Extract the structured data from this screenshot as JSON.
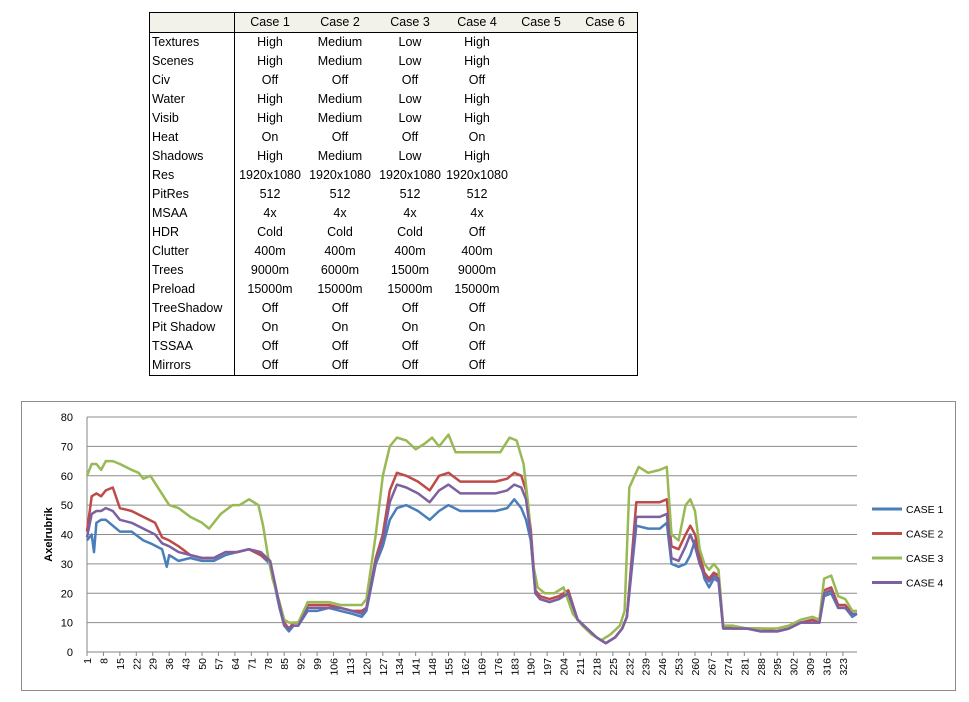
{
  "table": {
    "columns": [
      "",
      "Case 1",
      "Case 2",
      "Case 3",
      "Case 4",
      "Case 5",
      "Case 6"
    ],
    "rows": [
      {
        "label": "Textures",
        "values": [
          "High",
          "Medium",
          "Low",
          "High",
          "",
          ""
        ]
      },
      {
        "label": "Scenes",
        "values": [
          "High",
          "Medium",
          "Low",
          "High",
          "",
          ""
        ]
      },
      {
        "label": "Civ",
        "values": [
          "Off",
          "Off",
          "Off",
          "Off",
          "",
          ""
        ]
      },
      {
        "label": "Water",
        "values": [
          "High",
          "Medium",
          "Low",
          "High",
          "",
          ""
        ]
      },
      {
        "label": "Visib",
        "values": [
          "High",
          "Medium",
          "Low",
          "High",
          "",
          ""
        ]
      },
      {
        "label": "Heat",
        "values": [
          "On",
          "Off",
          "Off",
          "On",
          "",
          ""
        ]
      },
      {
        "label": "Shadows",
        "values": [
          "High",
          "Medium",
          "Low",
          "High",
          "",
          ""
        ]
      },
      {
        "label": "Res",
        "values": [
          "1920x1080",
          "1920x1080",
          "1920x1080",
          "1920x1080",
          "",
          ""
        ]
      },
      {
        "label": "PitRes",
        "values": [
          "512",
          "512",
          "512",
          "512",
          "",
          ""
        ]
      },
      {
        "label": "MSAA",
        "values": [
          "4x",
          "4x",
          "4x",
          "4x",
          "",
          ""
        ]
      },
      {
        "label": "HDR",
        "values": [
          "Cold",
          "Cold",
          "Cold",
          "Off",
          "",
          ""
        ]
      },
      {
        "label": "Clutter",
        "values": [
          "400m",
          "400m",
          "400m",
          "400m",
          "",
          ""
        ]
      },
      {
        "label": "Trees",
        "values": [
          "9000m",
          "6000m",
          "1500m",
          "9000m",
          "",
          ""
        ]
      },
      {
        "label": "Preload",
        "values": [
          "15000m",
          "15000m",
          "15000m",
          "15000m",
          "",
          ""
        ]
      },
      {
        "label": "TreeShadow",
        "values": [
          "Off",
          "Off",
          "Off",
          "Off",
          "",
          ""
        ]
      },
      {
        "label": "Pit Shadow",
        "values": [
          "On",
          "On",
          "On",
          "On",
          "",
          ""
        ]
      },
      {
        "label": "TSSAA",
        "values": [
          "Off",
          "Off",
          "Off",
          "Off",
          "",
          ""
        ]
      },
      {
        "label": "Mirrors",
        "values": [
          "Off",
          "Off",
          "Off",
          "Off",
          "",
          ""
        ]
      }
    ]
  },
  "chart_data": {
    "type": "line",
    "title": "",
    "xlabel": "",
    "ylabel": "Axelrubrik",
    "ylim": [
      0,
      80
    ],
    "yticks": [
      0,
      10,
      20,
      30,
      40,
      50,
      60,
      70,
      80
    ],
    "xlim": [
      1,
      329
    ],
    "xticks": [
      1,
      8,
      15,
      22,
      29,
      36,
      43,
      50,
      57,
      64,
      71,
      78,
      85,
      92,
      99,
      106,
      113,
      120,
      127,
      134,
      141,
      148,
      155,
      162,
      169,
      176,
      183,
      190,
      197,
      204,
      211,
      218,
      225,
      232,
      239,
      246,
      253,
      260,
      267,
      274,
      281,
      288,
      295,
      302,
      309,
      316,
      323
    ],
    "grid": true,
    "legend_position": "right",
    "series": [
      {
        "name": "CASE 1",
        "color": "#4a7ebb",
        "x": [
          1,
          3,
          4,
          5,
          7,
          9,
          12,
          15,
          20,
          25,
          28,
          33,
          35,
          36,
          40,
          45,
          50,
          55,
          60,
          65,
          70,
          75,
          79,
          83,
          85,
          87,
          89,
          91,
          95,
          99,
          104,
          109,
          114,
          118,
          120,
          124,
          127,
          130,
          133,
          137,
          142,
          147,
          151,
          155,
          160,
          165,
          170,
          175,
          180,
          183,
          186,
          188,
          190,
          192,
          194,
          198,
          202,
          206,
          210,
          214,
          218,
          222,
          226,
          229,
          231,
          235,
          240,
          245,
          248,
          250,
          253,
          256,
          258,
          260,
          262,
          264,
          266,
          268,
          270,
          272,
          276,
          282,
          288,
          295,
          300,
          305,
          310,
          313,
          315,
          318,
          321,
          324,
          327,
          329
        ],
        "y": [
          38,
          40,
          34,
          44,
          45,
          45,
          43,
          41,
          41,
          38,
          37,
          35,
          29,
          33,
          31,
          32,
          31,
          31,
          33,
          34,
          35,
          33,
          30,
          15,
          9,
          7,
          9,
          9,
          14,
          14,
          15,
          14,
          13,
          12,
          14,
          30,
          36,
          45,
          49,
          50,
          48,
          45,
          48,
          50,
          48,
          48,
          48,
          48,
          49,
          52,
          49,
          45,
          38,
          20,
          18,
          17,
          18,
          20,
          11,
          8,
          5,
          3,
          5,
          8,
          12,
          43,
          42,
          42,
          44,
          30,
          29,
          30,
          33,
          38,
          32,
          25,
          22,
          25,
          24,
          8,
          8,
          8,
          7,
          7,
          8,
          10,
          10,
          10,
          19,
          20,
          15,
          15,
          12,
          13
        ]
      },
      {
        "name": "CASE 2",
        "color": "#be4b48",
        "x": [
          1,
          3,
          5,
          7,
          9,
          12,
          15,
          20,
          25,
          30,
          33,
          36,
          40,
          45,
          50,
          55,
          60,
          65,
          70,
          75,
          79,
          83,
          85,
          87,
          89,
          91,
          95,
          99,
          104,
          109,
          114,
          118,
          120,
          124,
          127,
          130,
          133,
          137,
          142,
          147,
          151,
          155,
          160,
          165,
          170,
          175,
          180,
          183,
          186,
          188,
          190,
          192,
          194,
          198,
          202,
          206,
          210,
          214,
          218,
          222,
          226,
          229,
          231,
          235,
          240,
          245,
          248,
          250,
          253,
          256,
          258,
          260,
          262,
          264,
          266,
          268,
          270,
          272,
          276,
          282,
          288,
          295,
          300,
          305,
          310,
          313,
          315,
          318,
          321,
          324,
          327,
          329
        ],
        "y": [
          41,
          53,
          54,
          53,
          55,
          56,
          49,
          48,
          46,
          44,
          39,
          38,
          36,
          33,
          32,
          32,
          34,
          34,
          35,
          33,
          31,
          16,
          10,
          8,
          10,
          10,
          16,
          16,
          16,
          15,
          14,
          14,
          15,
          32,
          40,
          55,
          61,
          60,
          58,
          55,
          60,
          61,
          58,
          58,
          58,
          58,
          59,
          61,
          60,
          55,
          42,
          21,
          19,
          18,
          19,
          21,
          11,
          8,
          5,
          3,
          5,
          8,
          12,
          51,
          51,
          51,
          52,
          36,
          35,
          40,
          43,
          40,
          33,
          27,
          25,
          27,
          26,
          9,
          8,
          8,
          8,
          7,
          8,
          10,
          11,
          10,
          21,
          22,
          16,
          16,
          13,
          13
        ]
      },
      {
        "name": "CASE 3",
        "color": "#98b954",
        "x": [
          1,
          3,
          5,
          7,
          9,
          12,
          15,
          20,
          23,
          25,
          28,
          32,
          36,
          40,
          45,
          50,
          53,
          58,
          63,
          66,
          70,
          74,
          76,
          78,
          80,
          83,
          85,
          87,
          89,
          91,
          95,
          99,
          104,
          109,
          114,
          118,
          120,
          124,
          127,
          130,
          133,
          137,
          141,
          145,
          148,
          151,
          155,
          158,
          162,
          167,
          172,
          177,
          181,
          184,
          187,
          189,
          191,
          193,
          196,
          200,
          204,
          208,
          212,
          216,
          220,
          224,
          228,
          230,
          232,
          236,
          240,
          245,
          248,
          250,
          253,
          256,
          258,
          260,
          262,
          264,
          266,
          268,
          270,
          272,
          276,
          282,
          288,
          295,
          300,
          305,
          310,
          313,
          315,
          318,
          321,
          324,
          327,
          329
        ],
        "y": [
          60,
          64,
          64,
          62,
          65,
          65,
          64,
          62,
          61,
          59,
          60,
          55,
          50,
          49,
          46,
          44,
          42,
          47,
          50,
          50,
          52,
          50,
          43,
          33,
          25,
          17,
          11,
          10,
          10,
          10,
          17,
          17,
          17,
          16,
          16,
          16,
          18,
          40,
          60,
          70,
          73,
          72,
          69,
          71,
          73,
          70,
          74,
          68,
          68,
          68,
          68,
          68,
          73,
          72,
          64,
          50,
          30,
          22,
          20,
          20,
          22,
          13,
          9,
          6,
          4,
          6,
          9,
          14,
          56,
          63,
          61,
          62,
          63,
          40,
          38,
          50,
          52,
          48,
          35,
          30,
          28,
          30,
          28,
          9,
          9,
          8,
          8,
          8,
          9,
          11,
          12,
          11,
          25,
          26,
          19,
          18,
          14,
          14
        ]
      },
      {
        "name": "CASE 4",
        "color": "#7d60a0",
        "x": [
          1,
          3,
          5,
          7,
          9,
          12,
          15,
          20,
          25,
          30,
          33,
          36,
          40,
          45,
          50,
          55,
          60,
          65,
          70,
          75,
          79,
          83,
          85,
          87,
          89,
          91,
          95,
          99,
          104,
          109,
          114,
          118,
          120,
          124,
          127,
          130,
          133,
          137,
          142,
          147,
          151,
          155,
          160,
          165,
          170,
          175,
          180,
          183,
          186,
          188,
          190,
          192,
          194,
          198,
          202,
          206,
          210,
          214,
          218,
          222,
          226,
          229,
          231,
          235,
          240,
          245,
          248,
          250,
          253,
          256,
          258,
          260,
          262,
          264,
          266,
          268,
          270,
          272,
          276,
          282,
          288,
          295,
          300,
          305,
          310,
          313,
          315,
          318,
          321,
          324,
          327,
          329
        ],
        "y": [
          39,
          47,
          48,
          48,
          49,
          48,
          45,
          44,
          42,
          40,
          37,
          36,
          34,
          33,
          32,
          32,
          34,
          34,
          35,
          34,
          31,
          16,
          9,
          8,
          9,
          9,
          15,
          15,
          15,
          15,
          14,
          13,
          15,
          31,
          38,
          51,
          57,
          56,
          54,
          51,
          55,
          57,
          54,
          54,
          54,
          54,
          55,
          57,
          56,
          52,
          40,
          20,
          18,
          17,
          18,
          20,
          11,
          8,
          5,
          3,
          5,
          8,
          12,
          46,
          46,
          46,
          47,
          32,
          31,
          36,
          40,
          36,
          30,
          26,
          24,
          26,
          25,
          8,
          8,
          8,
          7,
          7,
          8,
          10,
          10,
          10,
          20,
          21,
          15,
          15,
          13,
          13
        ]
      }
    ]
  }
}
